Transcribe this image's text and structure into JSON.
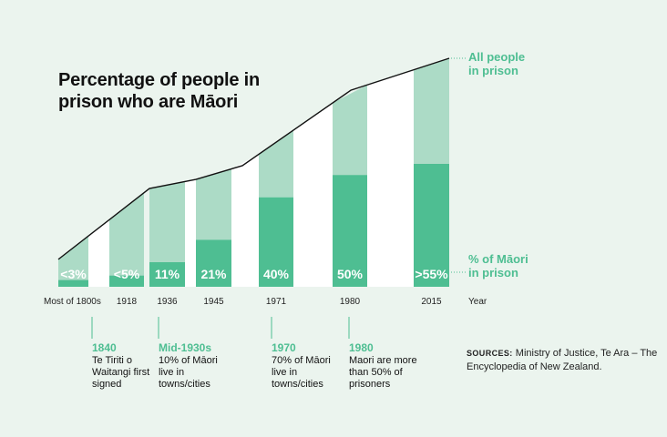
{
  "chart_data": {
    "type": "bar",
    "title": "Percentage of people in prison who are Māori",
    "xlabel": "Year",
    "categories": [
      "Most of 1800s",
      "1918",
      "1936",
      "1945",
      "1971",
      "1980",
      "2015"
    ],
    "series": [
      {
        "name": "% of Māori in prison",
        "values": [
          3,
          5,
          11,
          21,
          40,
          50,
          55
        ]
      }
    ],
    "value_labels": [
      "<3%",
      "<5%",
      "11%",
      "21%",
      "40%",
      "50%",
      ">55%"
    ],
    "overlay_line": {
      "name": "All people in prison",
      "points": [
        {
          "category": "Most of 1800s",
          "relative": 0.12
        },
        {
          "category": "1936",
          "relative": 0.43
        },
        {
          "category": "1945",
          "relative": 0.47
        },
        {
          "category": "1971",
          "relative": 0.53
        },
        {
          "category": "1980",
          "relative": 0.86
        },
        {
          "category": "2015",
          "relative": 1.0
        }
      ]
    },
    "legend": [
      {
        "label": "All people in prison",
        "placement": "top-right"
      },
      {
        "label": "% of Māori in prison",
        "placement": "right"
      }
    ],
    "grid": false
  },
  "legend_text": {
    "all_line1": "All people",
    "all_line2": "in prison",
    "maori_line1": "% of Māori",
    "maori_line2": "in prison"
  },
  "events": [
    {
      "year": "1840",
      "text": "Te Tiriti o Waitangi first signed"
    },
    {
      "year": "Mid-1930s",
      "text": "10% of Māori live in towns/cities"
    },
    {
      "year": "1970",
      "text": "70% of Māori live in towns/cities"
    },
    {
      "year": "1980",
      "text": "Maori are more than 50% of prisoners"
    }
  ],
  "sources": {
    "label": "SOURCES:",
    "text": "Ministry of Justice, Te Ara – The Encyclopedia of New Zealand."
  },
  "colors": {
    "background": "#ebf4ee",
    "light_bar": "#acdbc6",
    "dark_bar": "#4ebe92",
    "white_bar": "#ffffff",
    "line": "#111111",
    "accent_text": "#4ebe92"
  }
}
